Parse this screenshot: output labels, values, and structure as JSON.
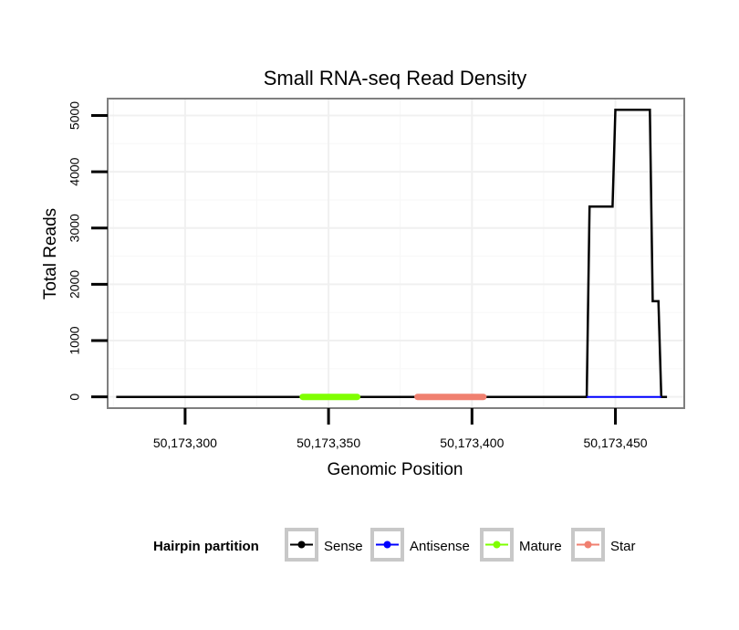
{
  "chart_data": {
    "type": "line",
    "title": "Small RNA-seq Read Density",
    "xlabel": "Genomic Position",
    "ylabel": "Total Reads",
    "xlim": [
      50173273,
      50173474
    ],
    "ylim": [
      -200,
      5300
    ],
    "x_ticks": [
      {
        "value": 50173300,
        "label": "50,173,300"
      },
      {
        "value": 50173350,
        "label": "50,173,350"
      },
      {
        "value": 50173400,
        "label": "50,173,400"
      },
      {
        "value": 50173450,
        "label": "50,173,450"
      }
    ],
    "y_ticks": [
      {
        "value": 0,
        "label": "0"
      },
      {
        "value": 1000,
        "label": "1000"
      },
      {
        "value": 2000,
        "label": "2000"
      },
      {
        "value": 3000,
        "label": "3000"
      },
      {
        "value": 4000,
        "label": "4000"
      },
      {
        "value": 5000,
        "label": "5000"
      }
    ],
    "grid": true,
    "series": [
      {
        "name": "Sense",
        "color": "#000000",
        "x": [
          50173276,
          50173440,
          50173441,
          50173449,
          50173450,
          50173462,
          50173463,
          50173465,
          50173466,
          50173468
        ],
        "values": [
          0,
          0,
          3380,
          3380,
          5100,
          5100,
          1700,
          1700,
          0,
          0
        ]
      },
      {
        "name": "Antisense",
        "color": "#0000ff",
        "x": [
          50173440,
          50173466
        ],
        "values": [
          0,
          0
        ]
      },
      {
        "name": "Mature",
        "color": "#7fff00",
        "x": [
          50173341,
          50173360
        ],
        "values": [
          0,
          0
        ]
      },
      {
        "name": "Star",
        "color": "#f08070",
        "x": [
          50173381,
          50173404
        ],
        "values": [
          0,
          0
        ]
      }
    ],
    "legend": {
      "title": "Hairpin partition",
      "position": "bottom",
      "entries": [
        "Sense",
        "Antisense",
        "Mature",
        "Star"
      ]
    }
  }
}
